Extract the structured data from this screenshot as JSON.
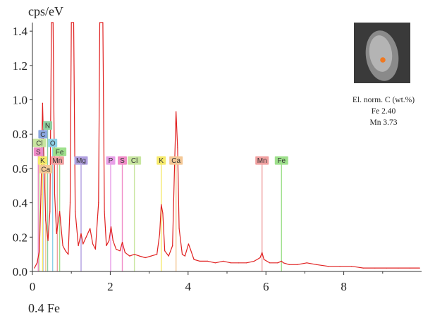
{
  "chart_data": {
    "type": "line",
    "title": "",
    "ylabel": "cps/eV",
    "xlabel": "",
    "bottom_note": "0.4 Fe",
    "xlim": [
      0,
      10
    ],
    "ylim": [
      0,
      1.45
    ],
    "x_ticks": [
      0,
      2,
      4,
      6,
      8
    ],
    "y_ticks": [
      0.0,
      0.2,
      0.4,
      0.6,
      0.8,
      1.0,
      1.2,
      1.4
    ],
    "grid": false,
    "series": [
      {
        "color": "#e02020",
        "points": [
          [
            0.05,
            0.02
          ],
          [
            0.12,
            0.05
          ],
          [
            0.18,
            0.12
          ],
          [
            0.22,
            0.45
          ],
          [
            0.26,
            0.98
          ],
          [
            0.3,
            0.6
          ],
          [
            0.34,
            0.3
          ],
          [
            0.4,
            0.18
          ],
          [
            0.45,
            0.35
          ],
          [
            0.49,
            1.45
          ],
          [
            0.53,
            1.45
          ],
          [
            0.57,
            0.45
          ],
          [
            0.62,
            0.22
          ],
          [
            0.7,
            0.35
          ],
          [
            0.78,
            0.15
          ],
          [
            0.85,
            0.12
          ],
          [
            0.92,
            0.1
          ],
          [
            0.97,
            0.4
          ],
          [
            1.0,
            1.45
          ],
          [
            1.06,
            1.45
          ],
          [
            1.1,
            0.35
          ],
          [
            1.18,
            0.15
          ],
          [
            1.25,
            0.22
          ],
          [
            1.3,
            0.16
          ],
          [
            1.38,
            0.2
          ],
          [
            1.48,
            0.25
          ],
          [
            1.55,
            0.16
          ],
          [
            1.62,
            0.13
          ],
          [
            1.7,
            0.4
          ],
          [
            1.73,
            1.45
          ],
          [
            1.81,
            1.45
          ],
          [
            1.85,
            0.35
          ],
          [
            1.9,
            0.15
          ],
          [
            1.97,
            0.18
          ],
          [
            2.02,
            0.26
          ],
          [
            2.07,
            0.18
          ],
          [
            2.15,
            0.13
          ],
          [
            2.25,
            0.12
          ],
          [
            2.31,
            0.17
          ],
          [
            2.38,
            0.11
          ],
          [
            2.5,
            0.09
          ],
          [
            2.62,
            0.1
          ],
          [
            2.75,
            0.09
          ],
          [
            2.9,
            0.08
          ],
          [
            3.05,
            0.09
          ],
          [
            3.2,
            0.1
          ],
          [
            3.27,
            0.22
          ],
          [
            3.31,
            0.39
          ],
          [
            3.35,
            0.34
          ],
          [
            3.4,
            0.12
          ],
          [
            3.5,
            0.09
          ],
          [
            3.6,
            0.15
          ],
          [
            3.65,
            0.6
          ],
          [
            3.69,
            0.93
          ],
          [
            3.73,
            0.72
          ],
          [
            3.77,
            0.25
          ],
          [
            3.85,
            0.1
          ],
          [
            3.92,
            0.09
          ],
          [
            4.01,
            0.16
          ],
          [
            4.06,
            0.13
          ],
          [
            4.15,
            0.07
          ],
          [
            4.3,
            0.06
          ],
          [
            4.5,
            0.06
          ],
          [
            4.7,
            0.05
          ],
          [
            4.9,
            0.06
          ],
          [
            5.1,
            0.05
          ],
          [
            5.3,
            0.05
          ],
          [
            5.5,
            0.05
          ],
          [
            5.7,
            0.06
          ],
          [
            5.85,
            0.08
          ],
          [
            5.9,
            0.11
          ],
          [
            5.95,
            0.07
          ],
          [
            6.1,
            0.05
          ],
          [
            6.3,
            0.05
          ],
          [
            6.4,
            0.06
          ],
          [
            6.45,
            0.05
          ],
          [
            6.6,
            0.04
          ],
          [
            6.8,
            0.04
          ],
          [
            7.05,
            0.05
          ],
          [
            7.3,
            0.04
          ],
          [
            7.6,
            0.03
          ],
          [
            7.9,
            0.03
          ],
          [
            8.2,
            0.03
          ],
          [
            8.5,
            0.02
          ],
          [
            8.8,
            0.02
          ],
          [
            9.1,
            0.02
          ],
          [
            9.4,
            0.02
          ],
          [
            9.7,
            0.02
          ],
          [
            9.95,
            0.02
          ]
        ]
      }
    ],
    "element_markers": [
      {
        "label": "N",
        "energy": 0.39,
        "row": 1,
        "color": "#8fd0a0"
      },
      {
        "label": "C",
        "energy": 0.27,
        "row": 2,
        "color": "#8aa7e0"
      },
      {
        "label": "Cl",
        "energy": 0.18,
        "row": 3,
        "color": "#c8e6a0"
      },
      {
        "label": "O",
        "energy": 0.52,
        "row": 3,
        "color": "#8ed0e8"
      },
      {
        "label": "S",
        "energy": 0.15,
        "row": 4,
        "color": "#f08cc8"
      },
      {
        "label": "Fe",
        "energy": 0.7,
        "row": 4,
        "color": "#9ee08c"
      },
      {
        "label": "K",
        "energy": 0.26,
        "row": 5,
        "color": "#f6ea6a"
      },
      {
        "label": "Mn",
        "energy": 0.64,
        "row": 5,
        "color": "#f0a0a0"
      },
      {
        "label": "Ca",
        "energy": 0.34,
        "row": 6,
        "color": "#f4c896"
      },
      {
        "label": "Mg",
        "energy": 1.25,
        "row": 5,
        "color": "#b0a0e0"
      },
      {
        "label": "P",
        "energy": 2.01,
        "row": 5,
        "color": "#e8a0e8"
      },
      {
        "label": "S",
        "energy": 2.31,
        "row": 5,
        "color": "#f08cc8"
      },
      {
        "label": "Cl",
        "energy": 2.62,
        "row": 5,
        "color": "#c8e6a0"
      },
      {
        "label": "K",
        "energy": 3.31,
        "row": 5,
        "color": "#f6ea6a"
      },
      {
        "label": "Ca",
        "energy": 3.69,
        "row": 5,
        "color": "#f4c896"
      },
      {
        "label": "Mn",
        "energy": 5.9,
        "row": 5,
        "color": "#f0a0a0"
      },
      {
        "label": "Fe",
        "energy": 6.4,
        "row": 5,
        "color": "#9ee08c"
      }
    ],
    "inset": {
      "lines": [
        "El. norm. C (wt.%)",
        "Fe 2.40",
        "Mn 3.73"
      ],
      "marker_color": "#f07820"
    }
  }
}
